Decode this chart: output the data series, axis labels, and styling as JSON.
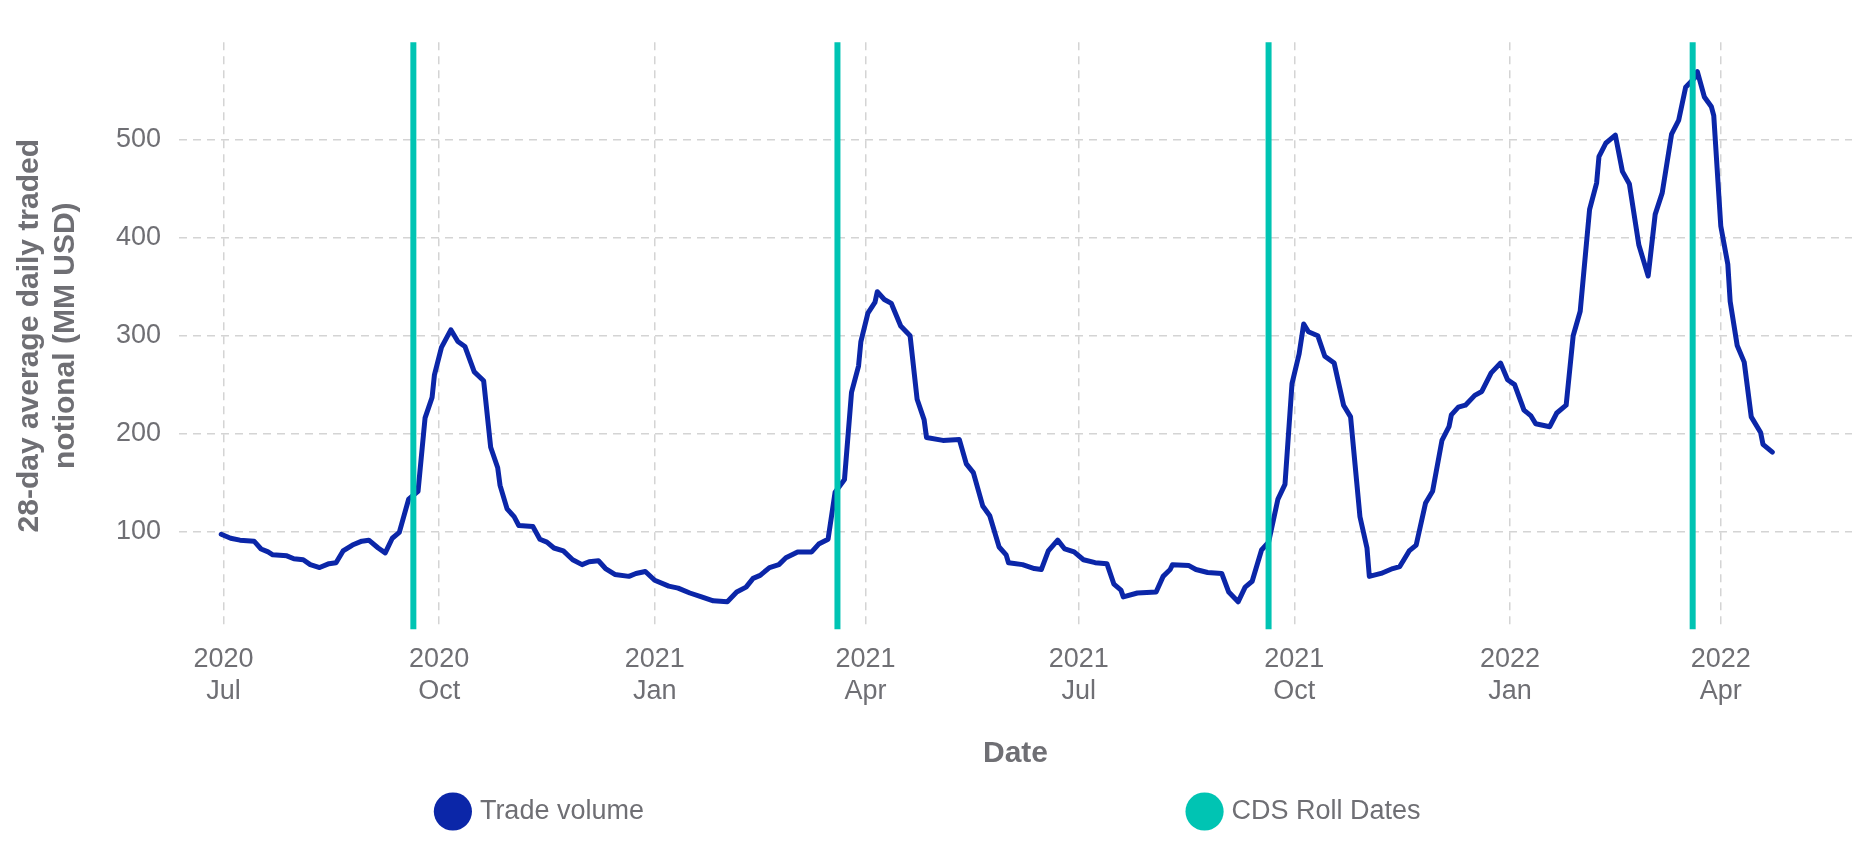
{
  "chart_data": {
    "type": "line",
    "xlabel": "Date",
    "ylabel": "28-day average daily traded notional (MM USD)",
    "x": [
      "2020-06-30",
      "2020-07-04",
      "2020-07-08",
      "2020-07-14",
      "2020-07-17",
      "2020-07-20",
      "2020-07-22",
      "2020-07-28",
      "2020-07-31",
      "2020-08-04",
      "2020-08-07",
      "2020-08-11",
      "2020-08-15",
      "2020-08-18",
      "2020-08-21",
      "2020-08-25",
      "2020-08-29",
      "2020-09-01",
      "2020-09-05",
      "2020-09-08",
      "2020-09-11",
      "2020-09-14",
      "2020-09-18",
      "2020-09-22",
      "2020-09-25",
      "2020-09-28",
      "2020-09-29",
      "2020-10-02",
      "2020-10-06",
      "2020-10-09",
      "2020-10-12",
      "2020-10-16",
      "2020-10-20",
      "2020-10-23",
      "2020-10-26",
      "2020-10-27",
      "2020-10-30",
      "2020-11-02",
      "2020-11-04",
      "2020-11-10",
      "2020-11-13",
      "2020-11-16",
      "2020-11-19",
      "2020-11-23",
      "2020-11-27",
      "2020-12-01",
      "2020-12-04",
      "2020-12-08",
      "2020-12-11",
      "2020-12-15",
      "2020-12-21",
      "2020-12-24",
      "2020-12-28",
      "2021-01-01",
      "2021-01-07",
      "2021-01-11",
      "2021-01-16",
      "2021-01-21",
      "2021-01-26",
      "2021-02-01",
      "2021-02-05",
      "2021-02-09",
      "2021-02-12",
      "2021-02-15",
      "2021-02-19",
      "2021-02-23",
      "2021-02-26",
      "2021-03-03",
      "2021-03-09",
      "2021-03-12",
      "2021-03-16",
      "2021-03-19",
      "2021-03-23",
      "2021-03-26",
      "2021-03-29",
      "2021-03-30",
      "2021-04-02",
      "2021-04-05",
      "2021-04-06",
      "2021-04-09",
      "2021-04-12",
      "2021-04-16",
      "2021-04-20",
      "2021-04-23",
      "2021-04-26",
      "2021-04-27",
      "2021-05-04",
      "2021-05-11",
      "2021-05-14",
      "2021-05-17",
      "2021-05-21",
      "2021-05-24",
      "2021-05-28",
      "2021-05-31",
      "2021-06-01",
      "2021-06-07",
      "2021-06-12",
      "2021-06-15",
      "2021-06-18",
      "2021-06-22",
      "2021-06-25",
      "2021-06-29",
      "2021-07-03",
      "2021-07-08",
      "2021-07-13",
      "2021-07-16",
      "2021-07-19",
      "2021-07-20",
      "2021-07-26",
      "2021-08-03",
      "2021-08-06",
      "2021-08-09",
      "2021-08-10",
      "2021-08-17",
      "2021-08-20",
      "2021-08-25",
      "2021-08-31",
      "2021-09-03",
      "2021-09-07",
      "2021-09-10",
      "2021-09-13",
      "2021-09-17",
      "2021-09-20",
      "2021-09-24",
      "2021-09-27",
      "2021-09-30",
      "2021-10-03",
      "2021-10-05",
      "2021-10-07",
      "2021-10-11",
      "2021-10-14",
      "2021-10-18",
      "2021-10-22",
      "2021-10-25",
      "2021-10-29",
      "2021-11-01",
      "2021-11-02",
      "2021-11-07",
      "2021-11-12",
      "2021-11-15",
      "2021-11-19",
      "2021-11-22",
      "2021-11-26",
      "2021-11-29",
      "2021-12-03",
      "2021-12-06",
      "2021-12-07",
      "2021-12-10",
      "2021-12-13",
      "2021-12-17",
      "2021-12-20",
      "2021-12-24",
      "2021-12-28",
      "2021-12-31",
      "2022-01-03",
      "2022-01-07",
      "2022-01-10",
      "2022-01-12",
      "2022-01-18",
      "2022-01-21",
      "2022-01-25",
      "2022-01-28",
      "2022-01-31",
      "2022-02-04",
      "2022-02-07",
      "2022-02-08",
      "2022-02-11",
      "2022-02-15",
      "2022-02-18",
      "2022-02-21",
      "2022-02-25",
      "2022-02-27",
      "2022-03-01",
      "2022-03-04",
      "2022-03-07",
      "2022-03-11",
      "2022-03-14",
      "2022-03-17",
      "2022-03-21",
      "2022-03-22",
      "2022-03-25",
      "2022-03-28",
      "2022-03-29",
      "2022-04-01",
      "2022-04-04",
      "2022-04-05",
      "2022-04-08",
      "2022-04-11",
      "2022-04-14",
      "2022-04-18",
      "2022-04-19",
      "2022-04-23"
    ],
    "series": [
      {
        "name": "Trade volume",
        "color": "#0b26a8",
        "values": [
          97,
          93,
          91,
          90,
          82,
          79,
          76,
          75,
          72,
          71,
          66,
          63,
          67,
          68,
          80,
          86,
          90,
          91,
          83,
          78,
          93,
          99,
          133,
          141,
          216,
          237,
          260,
          288,
          306,
          294,
          289,
          263,
          254,
          186,
          165,
          147,
          123,
          115,
          106,
          105,
          92,
          89,
          83,
          80,
          71,
          66,
          69,
          70,
          62,
          56,
          54,
          57,
          59,
          50,
          44,
          42,
          37,
          33,
          29,
          28,
          38,
          43,
          52,
          55,
          63,
          66,
          73,
          79,
          79,
          87,
          92,
          140,
          153,
          242,
          269,
          294,
          323,
          334,
          345,
          337,
          333,
          310,
          300,
          235,
          214,
          196,
          193,
          194,
          169,
          160,
          126,
          116,
          84,
          76,
          68,
          66,
          62,
          61,
          80,
          91,
          82,
          79,
          71,
          68,
          67,
          46,
          40,
          33,
          37,
          38,
          54,
          61,
          66,
          65,
          61,
          58,
          57,
          38,
          28,
          43,
          49,
          81,
          89,
          133,
          148,
          251,
          281,
          312,
          304,
          300,
          279,
          272,
          229,
          217,
          115,
          83,
          54,
          57,
          62,
          64,
          80,
          86,
          129,
          141,
          193,
          207,
          219,
          227,
          229,
          239,
          243,
          262,
          272,
          255,
          250,
          224,
          218,
          210,
          207,
          221,
          229,
          300,
          325,
          429,
          456,
          483,
          497,
          505,
          468,
          455,
          393,
          377,
          361,
          424,
          446,
          506,
          520,
          554,
          564,
          570,
          544,
          534,
          525,
          412,
          373,
          335,
          290,
          273,
          217,
          201,
          189,
          181
        ]
      }
    ],
    "ref_lines": [
      {
        "axis": "x",
        "value": "2020-09-20",
        "label": "CDS Roll Dates",
        "color": "#00c4b3"
      },
      {
        "axis": "x",
        "value": "2021-03-20",
        "color": "#00c4b3"
      },
      {
        "axis": "x",
        "value": "2021-09-20",
        "color": "#00c4b3"
      },
      {
        "axis": "x",
        "value": "2022-03-20",
        "color": "#00c4b3"
      }
    ],
    "xlim": [
      "2020-06-12",
      "2022-05-27"
    ],
    "xticks": [
      {
        "value": "2020-07-01",
        "label": "2020 Jul"
      },
      {
        "value": "2020-10-01",
        "label": "2020 Oct"
      },
      {
        "value": "2021-01-01",
        "label": "2021 Jan"
      },
      {
        "value": "2021-04-01",
        "label": "2021 Apr"
      },
      {
        "value": "2021-07-01",
        "label": "2021 Jul"
      },
      {
        "value": "2021-10-01",
        "label": "2021 Oct"
      },
      {
        "value": "2022-01-01",
        "label": "2022 Jan"
      },
      {
        "value": "2022-04-01",
        "label": "2022 Apr"
      }
    ],
    "ylim": [
      0,
      600
    ],
    "yticks": [
      100,
      200,
      300,
      400,
      500
    ],
    "grid": true,
    "legend": "bottom",
    "marker": "none",
    "line_style": "solid"
  }
}
